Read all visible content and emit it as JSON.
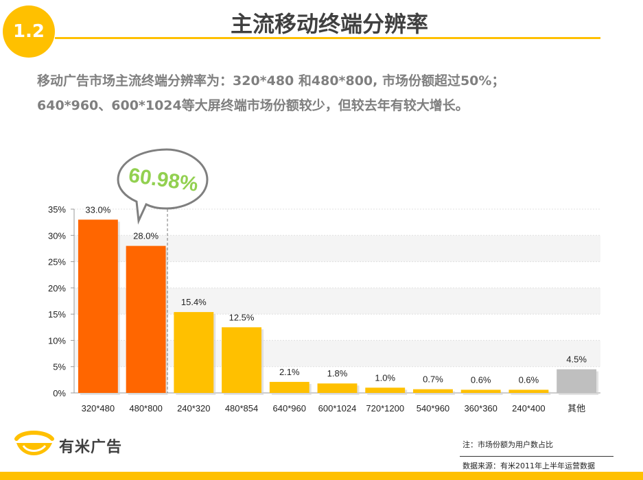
{
  "header": {
    "section_number": "1.2",
    "title": "主流移动终端分辨率"
  },
  "summary": {
    "line1": "移动广告市场主流终端分辨率为：320*480 和480*800, 市场份额超过50%；",
    "line2": "640*960、600*1024等大屏终端市场份额较少，但较去年有较大增长。"
  },
  "callout": {
    "text": "60.98%",
    "color": "#92d050"
  },
  "chart_data": {
    "type": "bar",
    "categories": [
      "320*480",
      "480*800",
      "240*320",
      "480*854",
      "640*960",
      "600*1024",
      "720*1200",
      "540*960",
      "360*360",
      "240*400",
      "其他"
    ],
    "values": [
      33.0,
      28.0,
      15.4,
      12.5,
      2.1,
      1.8,
      1.0,
      0.7,
      0.6,
      0.6,
      4.5
    ],
    "value_labels": [
      "33.0%",
      "28.0%",
      "15.4%",
      "12.5%",
      "2.1%",
      "1.8%",
      "1.0%",
      "0.7%",
      "0.6%",
      "0.6%",
      "4.5%"
    ],
    "bar_colors": [
      "#ff6600",
      "#ff6600",
      "#ffc000",
      "#ffc000",
      "#ffc000",
      "#ffc000",
      "#ffc000",
      "#ffc000",
      "#ffc000",
      "#ffc000",
      "#bfbfbf"
    ],
    "yticks": [
      0,
      5,
      10,
      15,
      20,
      25,
      30,
      35
    ],
    "ytick_labels": [
      "0%",
      "5%",
      "10%",
      "15%",
      "20%",
      "25%",
      "30%",
      "35%"
    ],
    "ylim": [
      0,
      35
    ],
    "title": "",
    "xlabel": "",
    "ylabel": "",
    "grid": true,
    "legend": "none"
  },
  "logo": {
    "text": "有米广告",
    "color": "#ffc000"
  },
  "notes": {
    "footnote": "注：市场份额为用户数占比",
    "source": "数据来源：有米2011年上半年运营数据"
  },
  "colors": {
    "accent": "#ffc000",
    "highlight": "#ff6600",
    "other": "#bfbfbf"
  }
}
